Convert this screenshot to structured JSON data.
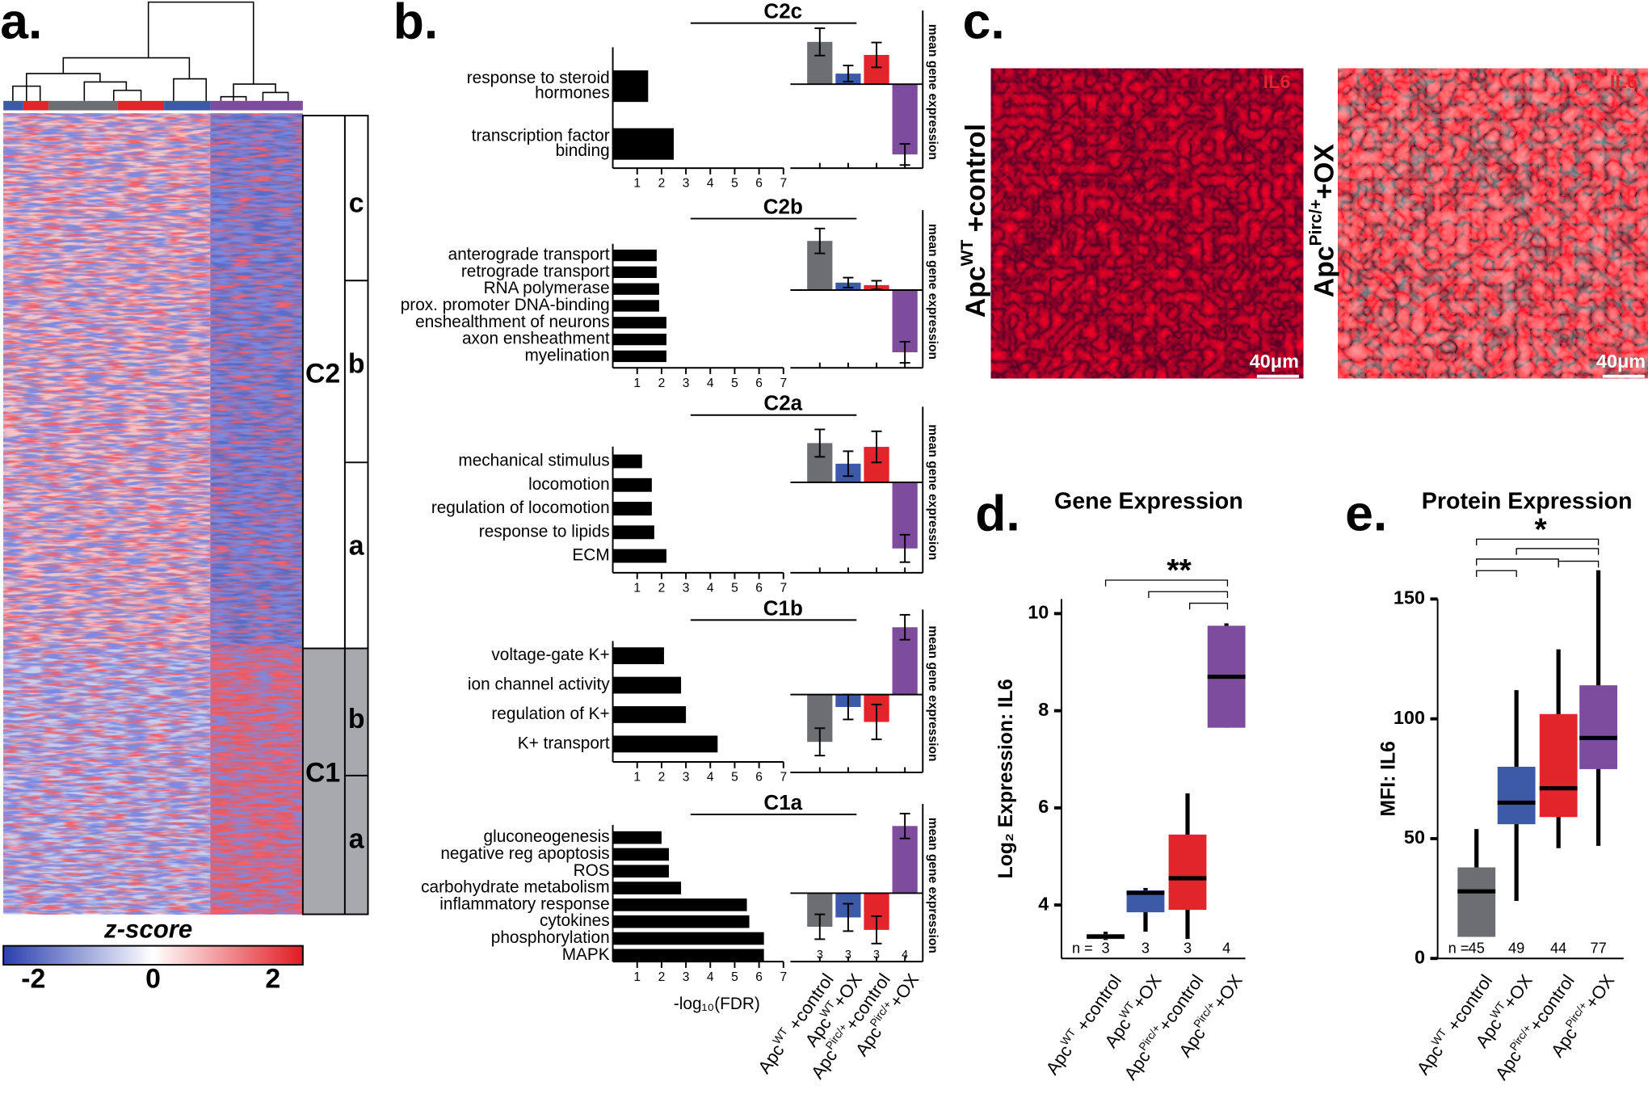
{
  "figure": {
    "panel_labels": [
      "a.",
      "b.",
      "c.",
      "d.",
      "e."
    ]
  },
  "group_labels": [
    {
      "base": "Apc",
      "sup": "WT",
      "suffix": " +control"
    },
    {
      "base": "Apc",
      "sup": "WT",
      "suffix": "+OX"
    },
    {
      "base": "Apc",
      "sup": "Pirc/+",
      "suffix": "+control"
    },
    {
      "base": "Apc",
      "sup": "Pirc/+",
      "suffix": "+OX"
    }
  ],
  "group_colors": [
    "#6d6e71",
    "#3d5aa9",
    "#e2242b",
    "#7e4c9d"
  ],
  "heatmap": {
    "clusters": [
      "C2",
      "C1"
    ],
    "subclusters": [
      "c",
      "b",
      "a",
      "b",
      "a"
    ],
    "colorbar_title": "z-score",
    "colorbar_lim": [
      -2.5,
      2.5
    ],
    "colorbar_ticks": [
      -2,
      0,
      2
    ]
  },
  "microscopy": {
    "channel_label": "IL6",
    "scale_label": "40μm"
  },
  "chart_data": [
    {
      "type": "barh",
      "title": "C2c",
      "categories": [
        [
          "response to steroid",
          "hormones"
        ],
        [
          "transcription factor",
          "binding"
        ]
      ],
      "values": [
        1.45,
        2.5
      ],
      "color": "#000000",
      "xlim": [
        0,
        7
      ],
      "xticks": [
        1,
        2,
        3,
        4,
        5,
        6,
        7
      ]
    },
    {
      "type": "barh",
      "title": "C2b",
      "categories": [
        "anterograde transport",
        "retrograde transport",
        "RNA polymerase",
        "prox. promoter DNA-binding",
        "enshealthment of neurons",
        "axon ensheathment",
        "myelination"
      ],
      "values": [
        1.8,
        1.8,
        1.9,
        1.9,
        2.2,
        2.2,
        2.2
      ],
      "color": "#000000",
      "xlim": [
        0,
        7
      ],
      "xticks": [
        1,
        2,
        3,
        4,
        5,
        6,
        7
      ]
    },
    {
      "type": "barh",
      "title": "C2a",
      "categories": [
        "mechanical stimulus",
        "locomotion",
        "regulation of locomotion",
        "response to lipids",
        "ECM"
      ],
      "values": [
        1.2,
        1.6,
        1.6,
        1.7,
        2.2
      ],
      "color": "#000000",
      "xlim": [
        0,
        7
      ],
      "xticks": [
        1,
        2,
        3,
        4,
        5,
        6,
        7
      ]
    },
    {
      "type": "barh",
      "title": "C1b",
      "categories": [
        "voltage-gate K+",
        "ion channel activity",
        "regulation of K+",
        "K+ transport"
      ],
      "values": [
        2.1,
        2.8,
        3.0,
        4.3
      ],
      "color": "#000000",
      "xlim": [
        0,
        7
      ],
      "xticks": [
        1,
        2,
        3,
        4,
        5,
        6,
        7
      ]
    },
    {
      "type": "barh",
      "title": "C1a",
      "categories": [
        "gluconeogenesis",
        "negative reg apoptosis",
        "ROS",
        "carbohydrate metabolism",
        "inflammatory response",
        "cytokines",
        "phosphorylation",
        "MAPK"
      ],
      "values": [
        2.0,
        2.3,
        2.3,
        2.8,
        5.5,
        5.6,
        6.2,
        6.2
      ],
      "color": "#000000",
      "xlim": [
        0,
        7
      ],
      "xticks": [
        1,
        2,
        3,
        4,
        5,
        6,
        7
      ],
      "xlabel": "-log₁₀(FDR)"
    },
    {
      "type": "bar",
      "ylabel": "mean gene expression",
      "values": [
        0.68,
        0.17,
        0.47,
        -1.13
      ],
      "errors": [
        0.22,
        0.13,
        0.2,
        0.17
      ],
      "ylim": [
        -1.35,
        1.1
      ]
    },
    {
      "type": "bar",
      "ylabel": "mean gene expression",
      "values": [
        0.79,
        0.12,
        0.08,
        -1.0
      ],
      "errors": [
        0.2,
        0.08,
        0.07,
        0.17
      ],
      "ylim": [
        -1.25,
        1.2
      ]
    },
    {
      "type": "bar",
      "ylabel": "mean gene expression",
      "values": [
        0.63,
        0.3,
        0.57,
        -1.06
      ],
      "errors": [
        0.22,
        0.2,
        0.25,
        0.22
      ],
      "ylim": [
        -1.45,
        1.13
      ]
    },
    {
      "type": "bar",
      "ylabel": "mean gene expression",
      "values": [
        -0.76,
        -0.2,
        -0.44,
        1.08
      ],
      "errors": [
        0.22,
        0.2,
        0.28,
        0.2
      ],
      "ylim": [
        -1.25,
        1.28
      ]
    },
    {
      "type": "bar",
      "ylabel": "mean gene expression",
      "values": [
        -0.54,
        -0.39,
        -0.59,
        1.08
      ],
      "errors": [
        0.2,
        0.22,
        0.22,
        0.2
      ],
      "ylim": [
        -1.1,
        1.35
      ],
      "counts": [
        3,
        3,
        3,
        4
      ]
    },
    {
      "type": "box",
      "title": "Gene Expression",
      "ylabel": "Log₂ Expression: IL6",
      "ylim": [
        2.9,
        10.3
      ],
      "yticks": [
        4,
        6,
        8,
        10
      ],
      "boxes": [
        {
          "whislo": 3.28,
          "q1": 3.3,
          "med": 3.35,
          "q3": 3.4,
          "whishi": 3.45
        },
        {
          "whislo": 3.45,
          "q1": 3.85,
          "med": 4.25,
          "q3": 4.3,
          "whishi": 4.35
        },
        {
          "whislo": 3.3,
          "q1": 3.9,
          "med": 4.55,
          "q3": 5.45,
          "whishi": 6.3
        },
        {
          "whislo": 7.65,
          "q1": 7.65,
          "med": 8.7,
          "q3": 9.75,
          "whishi": 9.8
        }
      ],
      "counts": [
        3,
        3,
        3,
        4
      ],
      "count_prefix": "n =",
      "significance": "**"
    },
    {
      "type": "box",
      "title": "Protein Expression",
      "ylabel": "MFI: IL6",
      "ylim": [
        0,
        150
      ],
      "yticks": [
        0,
        50,
        100,
        150
      ],
      "boxes": [
        {
          "whislo": 9,
          "q1": 9,
          "med": 28,
          "q3": 38,
          "whishi": 54
        },
        {
          "whislo": 24,
          "q1": 56,
          "med": 65,
          "q3": 80,
          "whishi": 112
        },
        {
          "whislo": 46,
          "q1": 59,
          "med": 71,
          "q3": 102,
          "whishi": 129
        },
        {
          "whislo": 47,
          "q1": 79,
          "med": 92,
          "q3": 114,
          "whishi": 162
        }
      ],
      "counts": [
        45,
        49,
        44,
        77
      ],
      "count_prefix": "n =",
      "significance": "*"
    }
  ]
}
